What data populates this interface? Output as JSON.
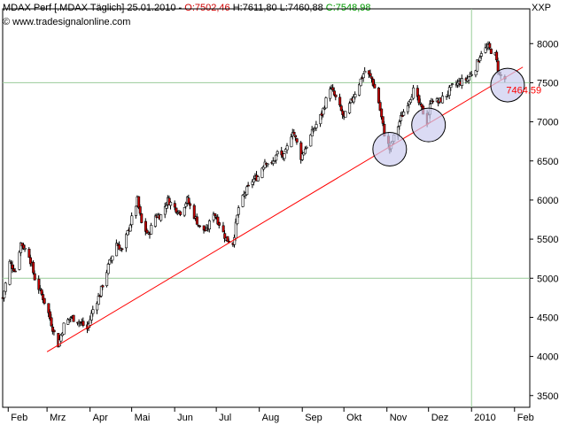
{
  "header": {
    "instrument": "MDAX Perf [.MDAX  Täglich]",
    "date": "25.01.2010",
    "open_label": "O:",
    "open_value": "7502,46",
    "high_label": "H:",
    "high_value": "7611,80",
    "low_label": "L:",
    "low_value": "7460,88",
    "close_label": "C:",
    "close_value": "7548,98",
    "source": "© www.tradesignalonline.com",
    "symbol": "XXP"
  },
  "colors": {
    "background": "#ffffff",
    "grid_horizontal": "#99cc99",
    "grid_vertical": "#99cc99",
    "up_candle": "#ffffff",
    "down_candle": "#cc0000",
    "wick": "#000000",
    "trendline": "#ff0000",
    "circle_fill": "#ccccf0",
    "circle_stroke": "#000000",
    "open_text": "#cc0000",
    "close_text": "#009900",
    "last_label": "#ff0000"
  },
  "chart_data": {
    "type": "candlestick",
    "ylim": [
      3350,
      8150
    ],
    "y_ticks": [
      3500,
      4000,
      4500,
      5000,
      5500,
      6000,
      6500,
      7000,
      7500,
      8000
    ],
    "y_tick_labels": [
      "3500",
      "4000",
      "4500",
      "5000",
      "5500",
      "6000",
      "6500",
      "7000",
      "7500",
      "8000"
    ],
    "x_range": [
      "2009-01-28",
      "2010-02-12"
    ],
    "x_ticks": [
      {
        "date": "2009-02-01",
        "label": "Feb"
      },
      {
        "date": "2009-03-01",
        "label": "Mrz"
      },
      {
        "date": "2009-04-01",
        "label": "Apr"
      },
      {
        "date": "2009-05-01",
        "label": "Mai"
      },
      {
        "date": "2009-06-01",
        "label": "Jun"
      },
      {
        "date": "2009-07-01",
        "label": "Jul"
      },
      {
        "date": "2009-08-01",
        "label": "Aug"
      },
      {
        "date": "2009-09-01",
        "label": "Sep"
      },
      {
        "date": "2009-10-01",
        "label": "Okt"
      },
      {
        "date": "2009-11-01",
        "label": "Nov"
      },
      {
        "date": "2009-12-01",
        "label": "Dez"
      },
      {
        "date": "2010-01-01",
        "label": "2010"
      },
      {
        "date": "2010-02-01",
        "label": "Feb"
      }
    ],
    "grid_y": [
      5000,
      7500
    ],
    "grid_x": [
      "2010-01-01"
    ],
    "close_path": [
      [
        "2009-01-28",
        4750
      ],
      [
        "2009-02-02",
        5200
      ],
      [
        "2009-02-06",
        5100
      ],
      [
        "2009-02-10",
        5450
      ],
      [
        "2009-02-16",
        5300
      ],
      [
        "2009-02-20",
        5000
      ],
      [
        "2009-02-26",
        4750
      ],
      [
        "2009-03-02",
        4550
      ],
      [
        "2009-03-06",
        4300
      ],
      [
        "2009-03-09",
        4150
      ],
      [
        "2009-03-13",
        4400
      ],
      [
        "2009-03-18",
        4500
      ],
      [
        "2009-03-24",
        4450
      ],
      [
        "2009-03-30",
        4350
      ],
      [
        "2009-04-03",
        4600
      ],
      [
        "2009-04-08",
        4800
      ],
      [
        "2009-04-14",
        5150
      ],
      [
        "2009-04-20",
        5450
      ],
      [
        "2009-04-24",
        5350
      ],
      [
        "2009-04-30",
        5700
      ],
      [
        "2009-05-05",
        6000
      ],
      [
        "2009-05-08",
        5700
      ],
      [
        "2009-05-13",
        5550
      ],
      [
        "2009-05-18",
        5800
      ],
      [
        "2009-05-22",
        5800
      ],
      [
        "2009-05-27",
        6000
      ],
      [
        "2009-06-01",
        5900
      ],
      [
        "2009-06-05",
        5850
      ],
      [
        "2009-06-10",
        6000
      ],
      [
        "2009-06-15",
        5800
      ],
      [
        "2009-06-19",
        5650
      ],
      [
        "2009-06-24",
        5600
      ],
      [
        "2009-06-29",
        5850
      ],
      [
        "2009-07-03",
        5700
      ],
      [
        "2009-07-08",
        5500
      ],
      [
        "2009-07-13",
        5450
      ],
      [
        "2009-07-17",
        5900
      ],
      [
        "2009-07-22",
        6100
      ],
      [
        "2009-07-27",
        6250
      ],
      [
        "2009-07-31",
        6300
      ],
      [
        "2009-08-05",
        6500
      ],
      [
        "2009-08-10",
        6450
      ],
      [
        "2009-08-14",
        6600
      ],
      [
        "2009-08-19",
        6550
      ],
      [
        "2009-08-25",
        6900
      ],
      [
        "2009-08-31",
        6550
      ],
      [
        "2009-09-04",
        6700
      ],
      [
        "2009-09-09",
        6900
      ],
      [
        "2009-09-15",
        7100
      ],
      [
        "2009-09-21",
        7450
      ],
      [
        "2009-09-25",
        7300
      ],
      [
        "2009-10-01",
        7050
      ],
      [
        "2009-10-06",
        7250
      ],
      [
        "2009-10-12",
        7500
      ],
      [
        "2009-10-16",
        7650
      ],
      [
        "2009-10-21",
        7550
      ],
      [
        "2009-10-26",
        7250
      ],
      [
        "2009-10-30",
        6850
      ],
      [
        "2009-11-03",
        6650
      ],
      [
        "2009-11-06",
        6800
      ],
      [
        "2009-11-11",
        7050
      ],
      [
        "2009-11-16",
        7250
      ],
      [
        "2009-11-20",
        7400
      ],
      [
        "2009-11-25",
        7200
      ],
      [
        "2009-11-30",
        7000
      ],
      [
        "2009-12-03",
        7300
      ],
      [
        "2009-12-08",
        7250
      ],
      [
        "2009-12-14",
        7350
      ],
      [
        "2009-12-18",
        7450
      ],
      [
        "2009-12-23",
        7500
      ],
      [
        "2009-12-29",
        7550
      ],
      [
        "2010-01-04",
        7700
      ],
      [
        "2010-01-08",
        7900
      ],
      [
        "2010-01-13",
        7950
      ],
      [
        "2010-01-18",
        7850
      ],
      [
        "2010-01-21",
        7600
      ],
      [
        "2010-01-25",
        7549
      ]
    ],
    "trendline": {
      "from": [
        "2009-03-01",
        4060
      ],
      "to": [
        "2010-02-07",
        7700
      ]
    },
    "highlight_circles": [
      {
        "center": [
          "2009-11-03",
          6650
        ]
      },
      {
        "center": [
          "2009-12-01",
          6960
        ]
      },
      {
        "center": [
          "2010-01-27",
          7470
        ]
      }
    ],
    "last_value_label": "7464.59",
    "last_value_label_at": [
      "2010-01-26",
      7364
    ]
  }
}
